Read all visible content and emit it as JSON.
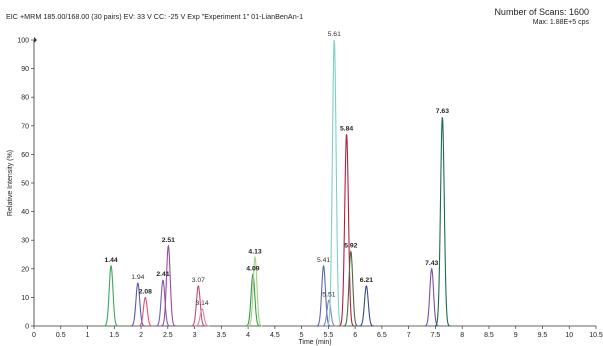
{
  "header": {
    "left_text": "EIC +MRM 185.00/168.00 (30 pairs) EV: 33 V CC: -25 V Exp \"Experiment 1\" 01-LianBenAn-1",
    "scans_label": "Number of Scans: 1600",
    "max_label": "Max: 1.88E+5 cps"
  },
  "chart_data": {
    "type": "line",
    "xlabel": "Time (min)",
    "ylabel": "Relative Intensity (%)",
    "xlim": [
      0,
      10.5
    ],
    "ylim": [
      0,
      100
    ],
    "xticks": [
      "0",
      "0.5",
      "1",
      "1.5",
      "2",
      "2.5",
      "3",
      "3.5",
      "4",
      "4.5",
      "5",
      "5.5",
      "6",
      "6.5",
      "7",
      "7.5",
      "8",
      "8.5",
      "9",
      "9.5",
      "10",
      "10.5"
    ],
    "yticks": [
      "0",
      "10",
      "20",
      "30",
      "40",
      "50",
      "60",
      "70",
      "80",
      "90",
      "100"
    ],
    "grid": false,
    "series": [
      {
        "rt": 1.44,
        "height": 21,
        "color": "#3aa860",
        "label": "1.44",
        "bold": true
      },
      {
        "rt": 1.94,
        "height": 15,
        "color": "#5a5aa8",
        "label": "1.94",
        "bold": false
      },
      {
        "rt": 2.08,
        "height": 10,
        "color": "#e0507a",
        "label": "2.08",
        "bold": true
      },
      {
        "rt": 2.41,
        "height": 16,
        "color": "#7a5ab0",
        "label": "2.41",
        "bold": true
      },
      {
        "rt": 2.51,
        "height": 28,
        "color": "#9a4aa0",
        "label": "2.51",
        "bold": true
      },
      {
        "rt": 3.07,
        "height": 14,
        "color": "#c84a7a",
        "label": "3.07",
        "bold": false
      },
      {
        "rt": 3.14,
        "height": 6,
        "color": "#e080a0",
        "label": "3.14",
        "bold": false
      },
      {
        "rt": 4.09,
        "height": 18,
        "color": "#3a9a4a",
        "label": "4.09",
        "bold": true
      },
      {
        "rt": 4.13,
        "height": 24,
        "color": "#a0d080",
        "label": "4.13",
        "bold": true
      },
      {
        "rt": 5.41,
        "height": 21,
        "color": "#5a6aa8",
        "label": "5.41",
        "bold": false
      },
      {
        "rt": 5.51,
        "height": 9,
        "color": "#8a80c0",
        "label": "5.51",
        "bold": false
      },
      {
        "rt": 5.61,
        "height": 100,
        "color": "#80d0c8",
        "label": "5.61",
        "bold": false
      },
      {
        "rt": 5.84,
        "height": 67,
        "color": "#b02040",
        "label": "5.84",
        "bold": true
      },
      {
        "rt": 5.92,
        "height": 26,
        "color": "#4a6a40",
        "label": "5.92",
        "bold": true
      },
      {
        "rt": 6.21,
        "height": 14,
        "color": "#3a4a90",
        "label": "6.21",
        "bold": true
      },
      {
        "rt": 7.43,
        "height": 20,
        "color": "#7a50b0",
        "label": "7.43",
        "bold": true
      },
      {
        "rt": 7.63,
        "height": 73,
        "color": "#1e6a50",
        "label": "7.63",
        "bold": true
      }
    ]
  }
}
